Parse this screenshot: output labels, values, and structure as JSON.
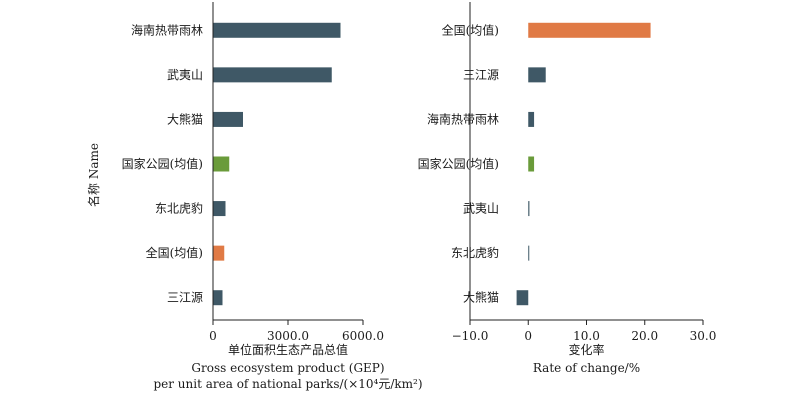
{
  "y_axis_title": "名称 Name",
  "colors": {
    "default": "#3f5866",
    "orange": "#e07a45",
    "green": "#6a9b3a"
  },
  "chart_data": [
    {
      "type": "bar",
      "orientation": "horizontal",
      "categories": [
        "海南热带雨林",
        "武夷山",
        "大熊猫",
        "国家公园(均值)",
        "东北虎豹",
        "全国(均值)",
        "三江源"
      ],
      "values": [
        5100,
        4750,
        1200,
        650,
        500,
        450,
        380
      ],
      "bar_colors": [
        "default",
        "default",
        "default",
        "green",
        "default",
        "orange",
        "default"
      ],
      "xlim": [
        0,
        6000
      ],
      "xticks": [
        0,
        3000,
        6000
      ],
      "xtick_labels": [
        "0",
        "3000.0",
        "6000.0"
      ],
      "xlabel_lines": [
        "单位面积生态产品总值",
        "Gross ecosystem product (GEP)",
        "per unit area of national parks/(×10⁴元/km²)"
      ],
      "grid": false
    },
    {
      "type": "bar",
      "orientation": "horizontal",
      "categories": [
        "全国(均值)",
        "三江源",
        "海南热带雨林",
        "国家公园(均值)",
        "武夷山",
        "东北虎豹",
        "大熊猫"
      ],
      "values": [
        21.0,
        3.0,
        1.0,
        1.0,
        0.2,
        0.1,
        -2.0
      ],
      "bar_colors": [
        "orange",
        "default",
        "default",
        "green",
        "default",
        "default",
        "default"
      ],
      "xlim": [
        -10,
        30
      ],
      "xticks": [
        -10,
        0,
        10,
        20,
        30
      ],
      "xtick_labels": [
        "−10.0",
        "0",
        "10.0",
        "20.0",
        "30.0"
      ],
      "xlabel_lines": [
        "变化率",
        "Rate of change/%"
      ],
      "grid": false
    }
  ]
}
